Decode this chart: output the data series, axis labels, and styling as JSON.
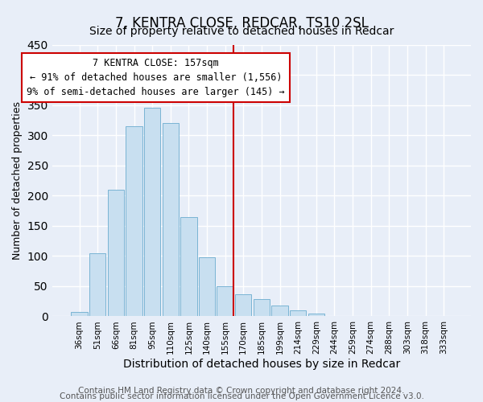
{
  "title": "7, KENTRA CLOSE, REDCAR, TS10 2SL",
  "subtitle": "Size of property relative to detached houses in Redcar",
  "xlabel": "Distribution of detached houses by size in Redcar",
  "ylabel": "Number of detached properties",
  "bar_labels": [
    "36sqm",
    "51sqm",
    "66sqm",
    "81sqm",
    "95sqm",
    "110sqm",
    "125sqm",
    "140sqm",
    "155sqm",
    "170sqm",
    "185sqm",
    "199sqm",
    "214sqm",
    "229sqm",
    "244sqm",
    "259sqm",
    "274sqm",
    "288sqm",
    "303sqm",
    "318sqm",
    "333sqm"
  ],
  "bar_values": [
    7,
    105,
    210,
    315,
    345,
    320,
    165,
    98,
    50,
    37,
    29,
    18,
    10,
    5,
    0,
    0,
    0,
    0,
    0,
    0,
    0
  ],
  "bar_color": "#c8dff0",
  "bar_edge_color": "#7ab4d4",
  "vline_color": "#cc0000",
  "annotation_title": "7 KENTRA CLOSE: 157sqm",
  "annotation_line1": "← 91% of detached houses are smaller (1,556)",
  "annotation_line2": "9% of semi-detached houses are larger (145) →",
  "annotation_box_color": "#ffffff",
  "annotation_box_edge": "#cc0000",
  "footer_line1": "Contains HM Land Registry data © Crown copyright and database right 2024.",
  "footer_line2": "Contains public sector information licensed under the Open Government Licence v3.0.",
  "ylim": [
    0,
    450
  ],
  "grid_color": "#d0d8e8",
  "bg_color": "#e8eef8",
  "title_fontsize": 12,
  "subtitle_fontsize": 10,
  "xlabel_fontsize": 10,
  "ylabel_fontsize": 9,
  "footer_fontsize": 7.5
}
